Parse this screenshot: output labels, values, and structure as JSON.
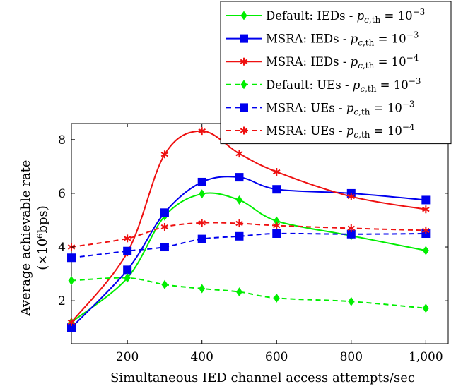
{
  "chart_data": {
    "type": "line",
    "xlabel": "Simultaneous IED channel access attempts/sec",
    "ylabel_line1": "Average achievable rate",
    "ylabel_line2": "(×10⁶bps)",
    "xlim": [
      50,
      1060
    ],
    "ylim": [
      0.4,
      8.6
    ],
    "x_ticks": [
      200,
      400,
      600,
      800,
      1000
    ],
    "x_tick_labels": [
      "200",
      "400",
      "600",
      "800",
      "1,000"
    ],
    "y_ticks": [
      2,
      4,
      6,
      8
    ],
    "y_tick_labels": [
      "2",
      "4",
      "6",
      "8"
    ],
    "grid": false,
    "legend_position": "top-right",
    "x": [
      50,
      200,
      300,
      400,
      500,
      600,
      800,
      1000
    ],
    "series": [
      {
        "name": "Default: IEDs - p_c,th = 10^-3",
        "legend_prefix": "Default: IEDs - ",
        "legend_exp": "−3",
        "color": "#00ee00",
        "dash": "solid",
        "marker": "diamond",
        "values": [
          1.2,
          2.85,
          5.15,
          5.98,
          5.75,
          4.97,
          4.42,
          3.87
        ]
      },
      {
        "name": "MSRA: IEDs - p_c,th = 10^-3",
        "legend_prefix": "MSRA: IEDs - ",
        "legend_exp": "−3",
        "color": "#0000ee",
        "dash": "solid",
        "marker": "square",
        "values": [
          1.0,
          3.15,
          5.28,
          6.42,
          6.6,
          6.15,
          6.0,
          5.75
        ]
      },
      {
        "name": "MSRA: IEDs - p_c,th = 10^-4",
        "legend_prefix": "MSRA: IEDs - ",
        "legend_exp": "−4",
        "color": "#ee1111",
        "dash": "solid",
        "marker": "star",
        "values": [
          1.2,
          3.8,
          7.45,
          8.32,
          7.48,
          6.8,
          5.88,
          5.4
        ]
      },
      {
        "name": "Default: UEs - p_c,th = 10^-3",
        "legend_prefix": "Default: UEs - ",
        "legend_exp": "−3",
        "color": "#00ee00",
        "dash": "dashed",
        "marker": "diamond",
        "values": [
          2.75,
          2.85,
          2.6,
          2.45,
          2.33,
          2.1,
          1.97,
          1.72
        ]
      },
      {
        "name": "MSRA: UEs - p_c,th = 10^-3",
        "legend_prefix": "MSRA: UEs - ",
        "legend_exp": "−3",
        "color": "#0000ee",
        "dash": "dashed",
        "marker": "square",
        "values": [
          3.6,
          3.85,
          4.0,
          4.3,
          4.4,
          4.5,
          4.48,
          4.5
        ]
      },
      {
        "name": "MSRA: UEs - p_c,th = 10^-4",
        "legend_prefix": "MSRA: UEs - ",
        "legend_exp": "−4",
        "color": "#ee1111",
        "dash": "dashed",
        "marker": "star",
        "values": [
          4.0,
          4.32,
          4.75,
          4.9,
          4.88,
          4.8,
          4.7,
          4.62
        ]
      }
    ]
  }
}
